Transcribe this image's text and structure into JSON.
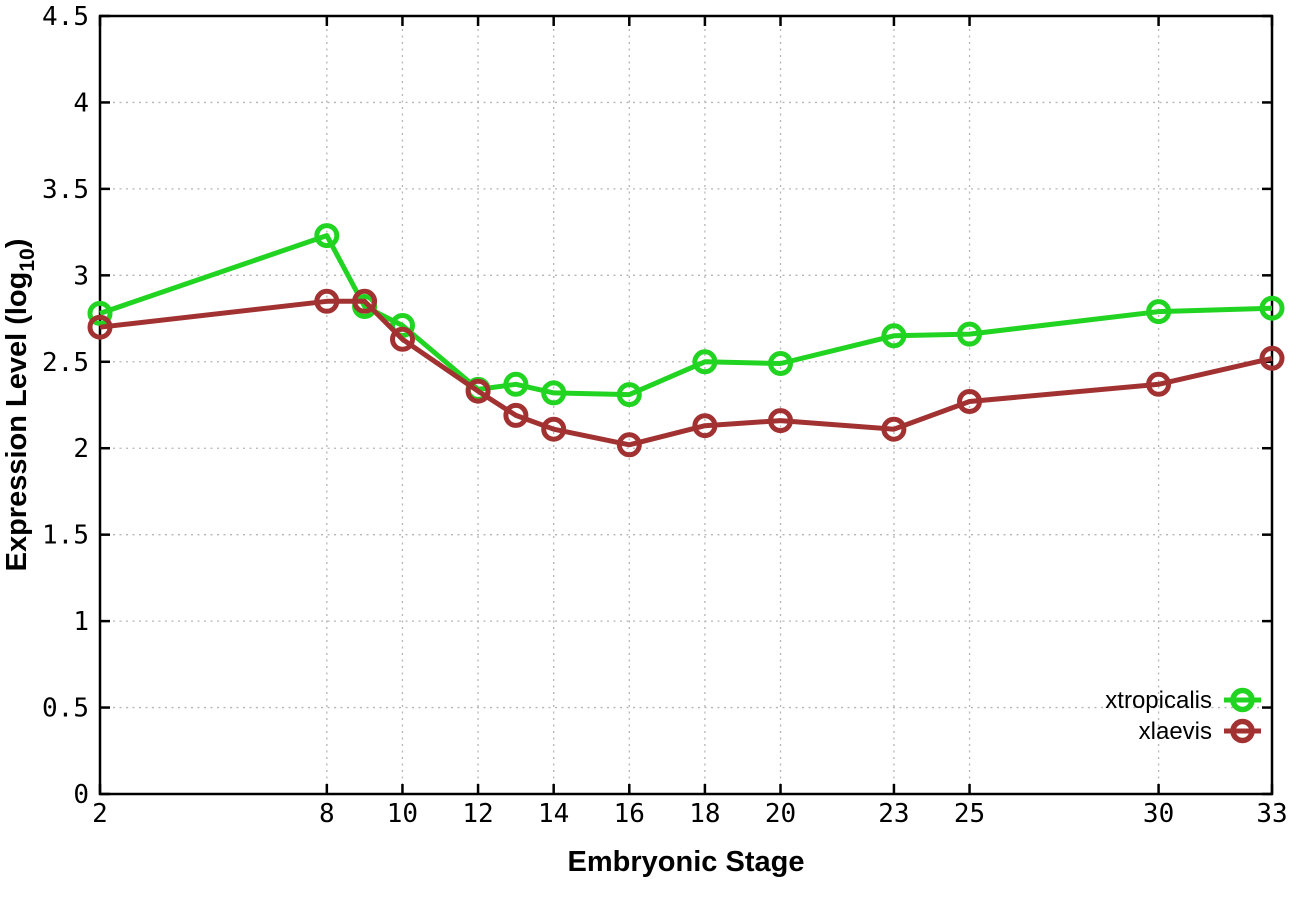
{
  "chart_data": {
    "type": "line",
    "title": "",
    "xlabel": "Embryonic Stage",
    "ylabel": {
      "prefix": "Expression Level (log",
      "subscript": "10",
      "suffix": ")"
    },
    "x": [
      2,
      8,
      9,
      10,
      12,
      13,
      14,
      16,
      18,
      20,
      23,
      25,
      30,
      33
    ],
    "series": [
      {
        "name": "xtropicalis",
        "color": "#22d422",
        "values": [
          2.78,
          3.23,
          2.82,
          2.71,
          2.34,
          2.37,
          2.32,
          2.31,
          2.5,
          2.49,
          2.65,
          2.66,
          2.79,
          2.81
        ]
      },
      {
        "name": "xlaevis",
        "color": "#a23232",
        "values": [
          2.7,
          2.85,
          2.85,
          2.63,
          2.33,
          2.19,
          2.11,
          2.02,
          2.13,
          2.16,
          2.11,
          2.27,
          2.37,
          2.52
        ]
      }
    ],
    "x_ticks": {
      "values": [
        2,
        8,
        10,
        12,
        14,
        16,
        18,
        20,
        23,
        25,
        30,
        33
      ],
      "labels": [
        "2",
        "8",
        "10",
        "12",
        "14",
        "16",
        "18",
        "20",
        "23",
        "25",
        "30",
        "33"
      ]
    },
    "y_ticks": {
      "values": [
        0,
        0.5,
        1,
        1.5,
        2,
        2.5,
        3,
        3.5,
        4,
        4.5
      ],
      "labels": [
        "0",
        "0.5",
        "1",
        "1.5",
        "2",
        "2.5",
        "3",
        "3.5",
        "4",
        "4.5"
      ]
    },
    "xlim": [
      2,
      33
    ],
    "ylim": [
      0,
      4.5
    ],
    "grid": true,
    "grid_style": "dotted",
    "legend_position": "bottom-right-inside",
    "marker": "open-circle",
    "colors": {
      "background": "#ffffff",
      "axis": "#000000",
      "grid": "#b5b5b5"
    }
  }
}
